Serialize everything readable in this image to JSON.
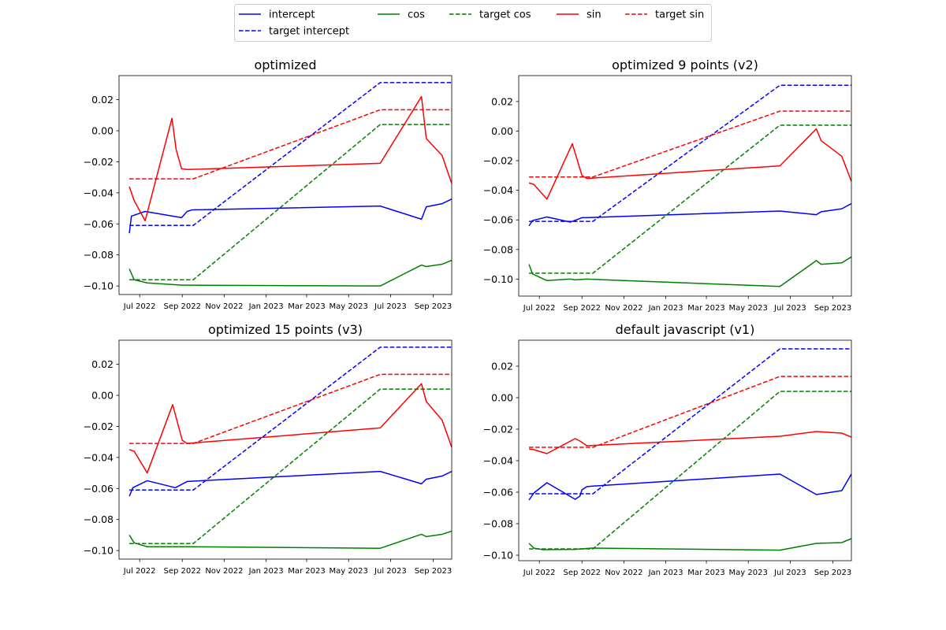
{
  "colors": {
    "intercept": "#0000ff",
    "cos": "#008000",
    "sin": "#ff0000"
  },
  "legend": {
    "placement": "top-center",
    "entries": [
      {
        "label": "intercept",
        "color": "#0000ff",
        "style": "solid"
      },
      {
        "label": "cos",
        "color": "#008000",
        "style": "solid"
      },
      {
        "label": "target cos",
        "color": "#008000",
        "style": "dashed"
      },
      {
        "label": "sin",
        "color": "#ff0000",
        "style": "solid"
      },
      {
        "label": "target sin",
        "color": "#ff0000",
        "style": "dashed"
      },
      {
        "label": "target intercept",
        "color": "#0000ff",
        "style": "dashed"
      }
    ]
  },
  "chart_data": [
    {
      "type": "line",
      "title": "optimized",
      "xlabel": "",
      "ylabel": "",
      "xlim": [
        "2022-06-01",
        "2023-09-28"
      ],
      "ylim": [
        -0.1055,
        0.0355
      ],
      "yticks": [
        -0.1,
        -0.08,
        -0.06,
        -0.04,
        -0.02,
        0.0,
        0.02
      ],
      "ytick_labels": [
        "−0.10",
        "−0.08",
        "−0.06",
        "−0.04",
        "−0.02",
        "0.00",
        "0.02"
      ],
      "xticks": [
        "2022-07-01",
        "2022-09-01",
        "2022-11-01",
        "2023-01-01",
        "2023-03-01",
        "2023-05-01",
        "2023-07-01",
        "2023-09-01"
      ],
      "xtick_labels": [
        "Jul 2022",
        "Sep 2022",
        "Nov 2022",
        "Jan 2023",
        "Mar 2023",
        "May 2023",
        "Jul 2023",
        "Sep 2023"
      ],
      "grid": false,
      "series": [
        {
          "name": "intercept",
          "color": "#0000ff",
          "style": "solid",
          "x": [
            "2022-06-16",
            "2022-06-19",
            "2022-07-09",
            "2022-08-31",
            "2022-09-08",
            "2022-09-15",
            "2023-06-16",
            "2023-08-15",
            "2023-08-22",
            "2023-09-14",
            "2023-09-28"
          ],
          "y": [
            -0.066,
            -0.055,
            -0.052,
            -0.056,
            -0.052,
            -0.051,
            -0.0485,
            -0.057,
            -0.049,
            -0.047,
            -0.044
          ]
        },
        {
          "name": "target intercept",
          "color": "#0000ff",
          "style": "dashed",
          "x": [
            "2022-06-16",
            "2022-09-17",
            "2023-06-16",
            "2023-09-28"
          ],
          "y": [
            -0.061,
            -0.061,
            0.031,
            0.031
          ]
        },
        {
          "name": "cos",
          "color": "#008000",
          "style": "solid",
          "x": [
            "2022-06-16",
            "2022-06-23",
            "2022-07-12",
            "2022-09-01",
            "2022-09-15",
            "2023-06-16",
            "2023-08-15",
            "2023-08-22",
            "2023-09-14",
            "2023-09-28"
          ],
          "y": [
            -0.089,
            -0.096,
            -0.098,
            -0.0995,
            -0.0995,
            -0.1,
            -0.0865,
            -0.0875,
            -0.086,
            -0.0835
          ]
        },
        {
          "name": "target cos",
          "color": "#008000",
          "style": "dashed",
          "x": [
            "2022-06-16",
            "2022-09-17",
            "2023-06-16",
            "2023-09-28"
          ],
          "y": [
            -0.096,
            -0.096,
            0.004,
            0.004
          ]
        },
        {
          "name": "sin",
          "color": "#ff0000",
          "style": "solid",
          "x": [
            "2022-06-16",
            "2022-06-23",
            "2022-07-09",
            "2022-08-17",
            "2022-08-23",
            "2022-08-31",
            "2022-09-08",
            "2023-06-16",
            "2023-08-15",
            "2023-08-22",
            "2023-09-14",
            "2023-09-28"
          ],
          "y": [
            -0.036,
            -0.045,
            -0.058,
            0.008,
            -0.012,
            -0.0245,
            -0.025,
            -0.021,
            0.022,
            -0.005,
            -0.016,
            -0.034
          ]
        },
        {
          "name": "target sin",
          "color": "#ff0000",
          "style": "dashed",
          "x": [
            "2022-06-16",
            "2022-09-17",
            "2023-06-16",
            "2023-09-28"
          ],
          "y": [
            -0.031,
            -0.031,
            0.0135,
            0.0135
          ]
        }
      ]
    },
    {
      "type": "line",
      "title": "optimized 9 points (v2)",
      "xlabel": "",
      "ylabel": "",
      "xlim": [
        "2022-06-01",
        "2023-09-28"
      ],
      "ylim": [
        -0.1115,
        0.0375
      ],
      "yticks": [
        -0.1,
        -0.08,
        -0.06,
        -0.04,
        -0.02,
        0.0,
        0.02
      ],
      "ytick_labels": [
        "−0.10",
        "−0.08",
        "−0.06",
        "−0.04",
        "−0.02",
        "0.00",
        "0.02"
      ],
      "xticks": [
        "2022-07-01",
        "2022-09-01",
        "2022-11-01",
        "2023-01-01",
        "2023-03-01",
        "2023-05-01",
        "2023-07-01",
        "2023-09-01"
      ],
      "xtick_labels": [
        "Jul 2022",
        "Sep 2022",
        "Nov 2022",
        "Jan 2023",
        "Mar 2023",
        "May 2023",
        "Jul 2023",
        "Sep 2023"
      ],
      "grid": false,
      "series": [
        {
          "name": "intercept",
          "color": "#0000ff",
          "style": "solid",
          "x": [
            "2022-06-16",
            "2022-06-21",
            "2022-07-12",
            "2022-08-15",
            "2022-09-01",
            "2022-09-08",
            "2023-06-16",
            "2023-08-08",
            "2023-08-15",
            "2023-09-14",
            "2023-09-28"
          ],
          "y": [
            -0.064,
            -0.0605,
            -0.058,
            -0.0615,
            -0.0585,
            -0.0585,
            -0.054,
            -0.0565,
            -0.0545,
            -0.0525,
            -0.049
          ]
        },
        {
          "name": "target intercept",
          "color": "#0000ff",
          "style": "dashed",
          "x": [
            "2022-06-16",
            "2022-09-17",
            "2023-06-16",
            "2023-09-28"
          ],
          "y": [
            -0.061,
            -0.061,
            0.031,
            0.031
          ]
        },
        {
          "name": "cos",
          "color": "#008000",
          "style": "solid",
          "x": [
            "2022-06-16",
            "2022-06-21",
            "2022-07-12",
            "2022-08-15",
            "2022-08-22",
            "2022-09-08",
            "2023-06-16",
            "2023-08-08",
            "2023-08-15",
            "2023-09-14",
            "2023-09-28"
          ],
          "y": [
            -0.09,
            -0.0965,
            -0.101,
            -0.1,
            -0.1005,
            -0.1,
            -0.105,
            -0.0875,
            -0.09,
            -0.089,
            -0.085
          ]
        },
        {
          "name": "target cos",
          "color": "#008000",
          "style": "dashed",
          "x": [
            "2022-06-16",
            "2022-09-17",
            "2023-06-16",
            "2023-09-28"
          ],
          "y": [
            -0.096,
            -0.096,
            0.004,
            0.004
          ]
        },
        {
          "name": "sin",
          "color": "#ff0000",
          "style": "solid",
          "x": [
            "2022-06-16",
            "2022-06-23",
            "2022-07-12",
            "2022-08-18",
            "2022-09-01",
            "2022-09-08",
            "2023-06-16",
            "2023-08-08",
            "2023-08-15",
            "2023-09-14",
            "2023-09-28"
          ],
          "y": [
            -0.035,
            -0.036,
            -0.046,
            -0.0085,
            -0.03,
            -0.032,
            -0.0235,
            0.0015,
            -0.0065,
            -0.017,
            -0.034
          ]
        },
        {
          "name": "target sin",
          "color": "#ff0000",
          "style": "dashed",
          "x": [
            "2022-06-16",
            "2022-09-17",
            "2023-06-16",
            "2023-09-28"
          ],
          "y": [
            -0.031,
            -0.031,
            0.0135,
            0.0135
          ]
        }
      ]
    },
    {
      "type": "line",
      "title": "optimized 15 points (v3)",
      "xlabel": "",
      "ylabel": "",
      "xlim": [
        "2022-06-01",
        "2023-09-28"
      ],
      "ylim": [
        -0.1055,
        0.0355
      ],
      "yticks": [
        -0.1,
        -0.08,
        -0.06,
        -0.04,
        -0.02,
        0.0,
        0.02
      ],
      "ytick_labels": [
        "−0.10",
        "−0.08",
        "−0.06",
        "−0.04",
        "−0.02",
        "0.00",
        "0.02"
      ],
      "xticks": [
        "2022-07-01",
        "2022-09-01",
        "2022-11-01",
        "2023-01-01",
        "2023-03-01",
        "2023-05-01",
        "2023-07-01",
        "2023-09-01"
      ],
      "xtick_labels": [
        "Jul 2022",
        "Sep 2022",
        "Nov 2022",
        "Jan 2023",
        "Mar 2023",
        "May 2023",
        "Jul 2023",
        "Sep 2023"
      ],
      "grid": false,
      "series": [
        {
          "name": "intercept",
          "color": "#0000ff",
          "style": "solid",
          "x": [
            "2022-06-16",
            "2022-06-21",
            "2022-07-12",
            "2022-08-22",
            "2022-09-08",
            "2023-06-16",
            "2023-08-15",
            "2023-08-22",
            "2023-09-14",
            "2023-09-28"
          ],
          "y": [
            -0.065,
            -0.0595,
            -0.055,
            -0.0595,
            -0.0555,
            -0.049,
            -0.057,
            -0.054,
            -0.052,
            -0.049
          ]
        },
        {
          "name": "target intercept",
          "color": "#0000ff",
          "style": "dashed",
          "x": [
            "2022-06-16",
            "2022-09-17",
            "2023-06-16",
            "2023-09-28"
          ],
          "y": [
            -0.061,
            -0.061,
            0.031,
            0.031
          ]
        },
        {
          "name": "cos",
          "color": "#008000",
          "style": "solid",
          "x": [
            "2022-06-16",
            "2022-06-23",
            "2022-07-12",
            "2022-09-08",
            "2023-06-16",
            "2023-08-15",
            "2023-08-22",
            "2023-09-14",
            "2023-09-28"
          ],
          "y": [
            -0.09,
            -0.095,
            -0.0975,
            -0.0975,
            -0.0985,
            -0.0895,
            -0.091,
            -0.0895,
            -0.0875
          ]
        },
        {
          "name": "target cos",
          "color": "#008000",
          "style": "dashed",
          "x": [
            "2022-06-16",
            "2022-09-17",
            "2023-06-16",
            "2023-09-28"
          ],
          "y": [
            -0.0955,
            -0.0955,
            0.004,
            0.004
          ]
        },
        {
          "name": "sin",
          "color": "#ff0000",
          "style": "solid",
          "x": [
            "2022-06-16",
            "2022-06-23",
            "2022-07-12",
            "2022-08-18",
            "2022-09-01",
            "2022-09-08",
            "2023-06-16",
            "2023-08-15",
            "2023-08-22",
            "2023-09-14",
            "2023-09-28"
          ],
          "y": [
            -0.035,
            -0.036,
            -0.05,
            -0.006,
            -0.029,
            -0.031,
            -0.021,
            0.0075,
            -0.004,
            -0.016,
            -0.0335
          ]
        },
        {
          "name": "target sin",
          "color": "#ff0000",
          "style": "dashed",
          "x": [
            "2022-06-16",
            "2022-09-17",
            "2023-06-16",
            "2023-09-28"
          ],
          "y": [
            -0.031,
            -0.031,
            0.0135,
            0.0135
          ]
        }
      ]
    },
    {
      "type": "line",
      "title": "default javascript (v1)",
      "xlabel": "",
      "ylabel": "",
      "xlim": [
        "2022-06-01",
        "2023-09-28"
      ],
      "ylim": [
        -0.1035,
        0.0365
      ],
      "yticks": [
        -0.1,
        -0.08,
        -0.06,
        -0.04,
        -0.02,
        0.0,
        0.02
      ],
      "ytick_labels": [
        "−0.10",
        "−0.08",
        "−0.06",
        "−0.04",
        "−0.02",
        "0.00",
        "0.02"
      ],
      "xticks": [
        "2022-07-01",
        "2022-09-01",
        "2022-11-01",
        "2023-01-01",
        "2023-03-01",
        "2023-05-01",
        "2023-07-01",
        "2023-09-01"
      ],
      "xtick_labels": [
        "Jul 2022",
        "Sep 2022",
        "Nov 2022",
        "Jan 2023",
        "Mar 2023",
        "May 2023",
        "Jul 2023",
        "Sep 2023"
      ],
      "grid": false,
      "series": [
        {
          "name": "intercept",
          "color": "#0000ff",
          "style": "solid",
          "x": [
            "2022-06-16",
            "2022-06-23",
            "2022-07-12",
            "2022-08-22",
            "2022-08-29",
            "2022-09-01",
            "2022-09-08",
            "2022-09-15",
            "2023-06-16",
            "2023-08-08",
            "2023-09-14",
            "2023-09-28"
          ],
          "y": [
            -0.065,
            -0.0605,
            -0.054,
            -0.0645,
            -0.0625,
            -0.0585,
            -0.0565,
            -0.0562,
            -0.0485,
            -0.0615,
            -0.059,
            -0.0485
          ]
        },
        {
          "name": "target intercept",
          "color": "#0000ff",
          "style": "dashed",
          "x": [
            "2022-06-16",
            "2022-09-17",
            "2023-06-16",
            "2023-09-28"
          ],
          "y": [
            -0.061,
            -0.061,
            0.031,
            0.031
          ]
        },
        {
          "name": "cos",
          "color": "#008000",
          "style": "solid",
          "x": [
            "2022-06-16",
            "2022-06-23",
            "2022-07-06",
            "2022-08-22",
            "2022-09-15",
            "2023-06-16",
            "2023-08-08",
            "2023-09-14",
            "2023-09-28"
          ],
          "y": [
            -0.0925,
            -0.0955,
            -0.0965,
            -0.0963,
            -0.0955,
            -0.0968,
            -0.0925,
            -0.092,
            -0.0895
          ]
        },
        {
          "name": "target cos",
          "color": "#008000",
          "style": "dashed",
          "x": [
            "2022-06-16",
            "2022-09-17",
            "2023-06-16",
            "2023-09-28"
          ],
          "y": [
            -0.096,
            -0.096,
            0.004,
            0.004
          ]
        },
        {
          "name": "sin",
          "color": "#ff0000",
          "style": "solid",
          "x": [
            "2022-06-16",
            "2022-06-23",
            "2022-07-12",
            "2022-08-22",
            "2022-08-29",
            "2022-09-08",
            "2023-06-16",
            "2023-08-08",
            "2023-09-14",
            "2023-09-28"
          ],
          "y": [
            -0.0325,
            -0.033,
            -0.0355,
            -0.026,
            -0.0275,
            -0.0305,
            -0.0245,
            -0.0215,
            -0.0225,
            -0.025
          ]
        },
        {
          "name": "target sin",
          "color": "#ff0000",
          "style": "dashed",
          "x": [
            "2022-06-16",
            "2022-09-17",
            "2023-06-16",
            "2023-09-28"
          ],
          "y": [
            -0.0315,
            -0.0315,
            0.0135,
            0.0135
          ]
        }
      ]
    }
  ]
}
